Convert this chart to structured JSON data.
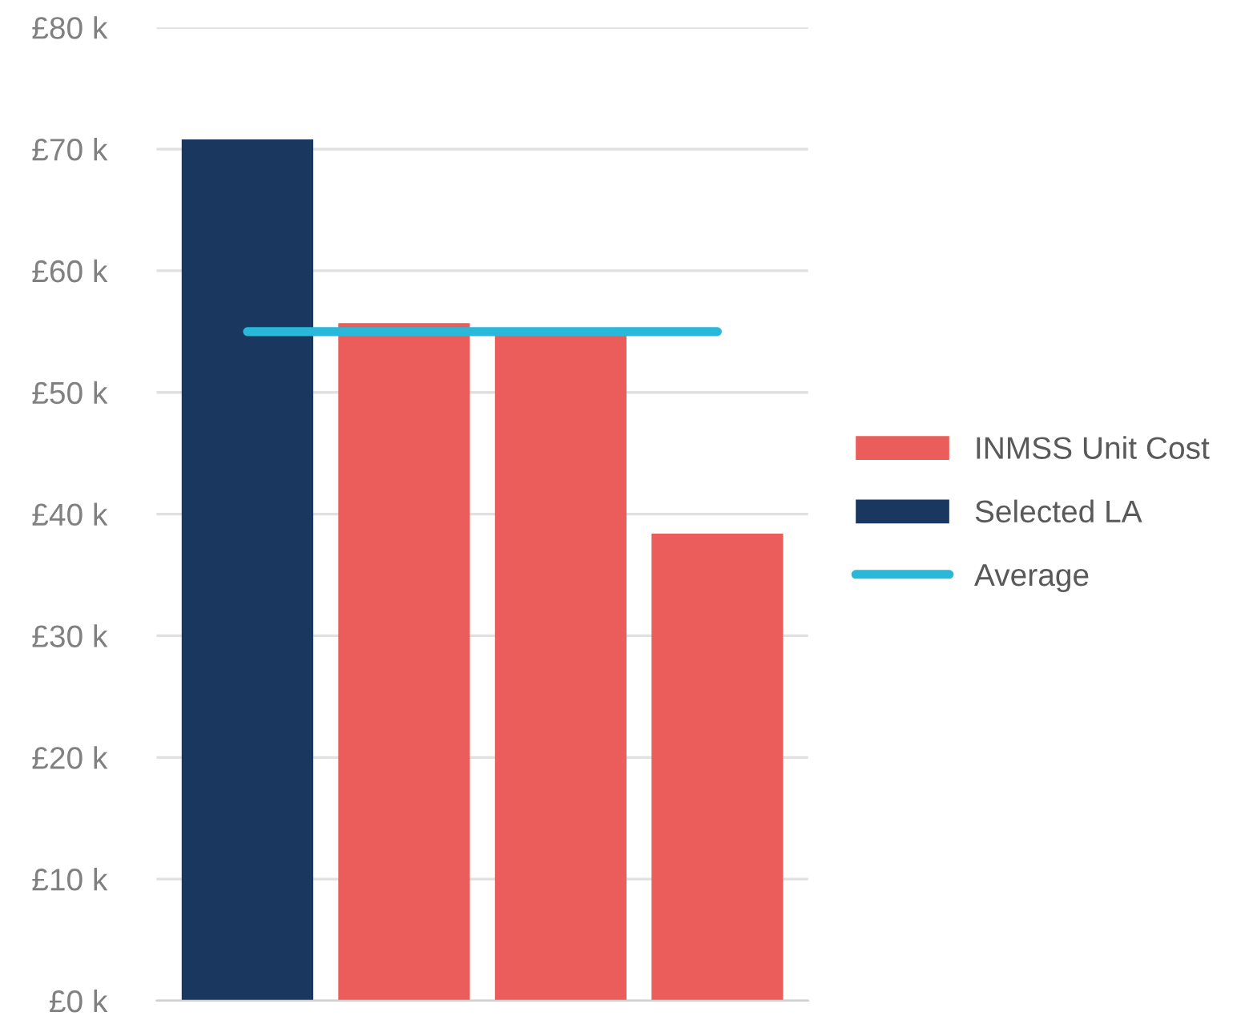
{
  "chart_data": {
    "type": "bar",
    "categories": [
      null,
      null,
      null,
      null
    ],
    "series": [
      {
        "name": "INMSS Unit Cost",
        "color": "#eb5d5b",
        "values": [
          null,
          55.7,
          54.7,
          38.4
        ]
      },
      {
        "name": "Selected LA",
        "color": "#1a375f",
        "values": [
          70.8,
          null,
          null,
          null
        ]
      },
      {
        "name": "Average",
        "type": "line",
        "color": "#2ab8da",
        "values": [
          55.0,
          55.0,
          55.0,
          55.0
        ]
      }
    ],
    "ylim": [
      0,
      80
    ],
    "yticks": [
      {
        "value": 0,
        "label": "£0 k"
      },
      {
        "value": 10,
        "label": "£10 k"
      },
      {
        "value": 20,
        "label": "£20 k"
      },
      {
        "value": 30,
        "label": "£30 k"
      },
      {
        "value": 40,
        "label": "£40 k"
      },
      {
        "value": 50,
        "label": "£50 k"
      },
      {
        "value": 60,
        "label": "£60 k"
      },
      {
        "value": 70,
        "label": "£70 k"
      },
      {
        "value": 80,
        "label": "£80 k"
      }
    ],
    "grid": "y",
    "legend": "right",
    "marker": "none"
  }
}
